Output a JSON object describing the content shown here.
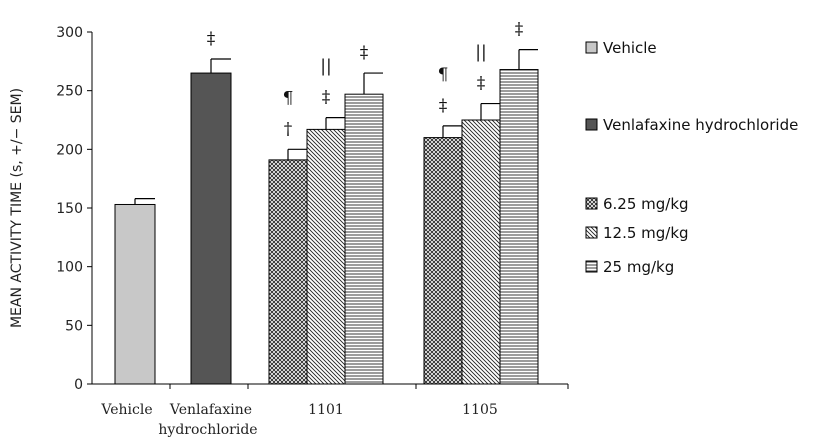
{
  "chart_data": {
    "type": "bar",
    "ylabel": "MEAN ACTIVITY TIME (s, +/− SEM)",
    "ylim": [
      0,
      300
    ],
    "yticks": [
      0,
      50,
      100,
      150,
      200,
      250,
      300
    ],
    "grid": false,
    "legend_position": "right",
    "categories": [
      "Vehicle",
      "Venlafaxine hydrochloride",
      "1101",
      "1105"
    ],
    "category_labels": [
      [
        "Vehicle"
      ],
      [
        "Venlafaxine",
        "hydrochloride"
      ],
      [
        "1101"
      ],
      [
        "1105"
      ]
    ],
    "bars": [
      {
        "category": "Vehicle",
        "series": "Vehicle",
        "value": 153,
        "sem": 5,
        "marks": []
      },
      {
        "category": "Venlafaxine hydrochloride",
        "series": "Venlafaxine hydrochloride",
        "value": 265,
        "sem": 12,
        "marks": [
          "‡"
        ]
      },
      {
        "category": "1101",
        "series": "6.25 mg/kg",
        "value": 191,
        "sem": 9,
        "marks": [
          "†",
          "¶"
        ]
      },
      {
        "category": "1101",
        "series": "12.5 mg/kg",
        "value": 217,
        "sem": 10,
        "marks": [
          "‡",
          "||"
        ]
      },
      {
        "category": "1101",
        "series": "25 mg/kg",
        "value": 247,
        "sem": 18,
        "marks": [
          "‡"
        ]
      },
      {
        "category": "1105",
        "series": "6.25 mg/kg",
        "value": 210,
        "sem": 10,
        "marks": [
          "‡",
          "¶"
        ]
      },
      {
        "category": "1105",
        "series": "12.5 mg/kg",
        "value": 225,
        "sem": 14,
        "marks": [
          "‡",
          "||"
        ]
      },
      {
        "category": "1105",
        "series": "25 mg/kg",
        "value": 268,
        "sem": 17,
        "marks": [
          "‡"
        ]
      }
    ],
    "legend": [
      {
        "label": "Vehicle",
        "pattern": "solid-light-gray"
      },
      {
        "label": "Venlafaxine hydrochloride",
        "pattern": "solid-dark-gray"
      },
      {
        "label": "6.25 mg/kg",
        "pattern": "crosshatch"
      },
      {
        "label": "12.5 mg/kg",
        "pattern": "diagonal"
      },
      {
        "label": "25 mg/kg",
        "pattern": "horizontal"
      }
    ],
    "colors": {
      "vehicle_fill": "#c8c8c8",
      "venlafaxine_fill": "#555555",
      "pattern_bg": "#ffffff",
      "stroke": "#000000"
    }
  }
}
